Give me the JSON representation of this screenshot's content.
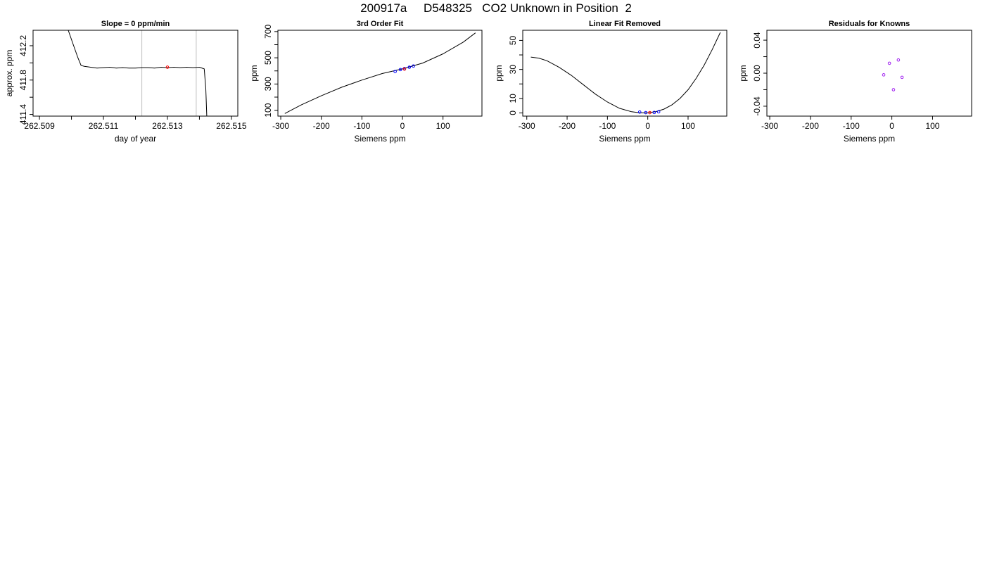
{
  "figure": {
    "title": "200917a     D548325   CO2 Unknown in Position  2"
  },
  "colors": {
    "line": "#000000",
    "vline": "#bebebe",
    "known_point": "#0000ff",
    "unknown_point": "#ff0000",
    "residual_point": "#a020f0"
  },
  "chart_data": [
    {
      "type": "line",
      "title": "Slope =  0  ppm/min",
      "xlabel": "day of year",
      "ylabel": "approx. ppm",
      "xlim": [
        262.5088,
        262.5152
      ],
      "ylim": [
        411.38,
        412.38
      ],
      "xticks": [
        262.509,
        262.51,
        262.511,
        262.512,
        262.513,
        262.514,
        262.515
      ],
      "xtick_labels": [
        "262.509",
        "",
        "262.511",
        "",
        "262.513",
        "",
        "262.515"
      ],
      "yticks": [
        411.4,
        411.6,
        411.8,
        412.0,
        412.2
      ],
      "ytick_labels": [
        "411.4",
        "",
        "411.8",
        "",
        "412.2"
      ],
      "vlines": [
        262.5122,
        262.5139
      ],
      "series": [
        {
          "x": [
            262.5099,
            262.51005,
            262.5102,
            262.5103,
            262.5104,
            262.5106,
            262.5108,
            262.511,
            262.5112,
            262.5114,
            262.5116,
            262.5118,
            262.512,
            262.5122,
            262.5124,
            262.5126,
            262.5128,
            262.513,
            262.5132,
            262.5134,
            262.5136,
            262.5138,
            262.514,
            262.51415,
            262.5142,
            262.51423
          ],
          "y": [
            412.38,
            412.22,
            412.06,
            411.97,
            411.96,
            411.95,
            411.94,
            411.945,
            411.95,
            411.94,
            411.945,
            411.94,
            411.94,
            411.945,
            411.945,
            411.94,
            411.95,
            411.945,
            411.95,
            411.945,
            411.95,
            411.945,
            411.95,
            411.93,
            411.7,
            411.38
          ]
        }
      ],
      "points": [
        {
          "x": 262.513,
          "y": 411.95,
          "kind": "unknown"
        }
      ]
    },
    {
      "type": "line",
      "title": "3rd Order Fit",
      "xlabel": "Siemens ppm",
      "ylabel": "ppm",
      "xlim": [
        -307,
        196
      ],
      "ylim": [
        55,
        710
      ],
      "xticks": [
        -300,
        -200,
        -100,
        0,
        100
      ],
      "xtick_labels": [
        "-300",
        "-200",
        "-100",
        "0",
        "100"
      ],
      "yticks": [
        100,
        200,
        300,
        400,
        500,
        600,
        700
      ],
      "ytick_labels": [
        "100",
        "",
        "300",
        "",
        "500",
        "",
        "700"
      ],
      "series": [
        {
          "x": [
            -290,
            -250,
            -200,
            -150,
            -100,
            -50,
            0,
            50,
            100,
            150,
            180
          ],
          "y": [
            75,
            140,
            210,
            275,
            330,
            380,
            415,
            460,
            530,
            620,
            690
          ]
        }
      ],
      "points": [
        {
          "x": -18,
          "y": 395,
          "kind": "known"
        },
        {
          "x": -5,
          "y": 410,
          "kind": "known"
        },
        {
          "x": 5,
          "y": 418,
          "kind": "known"
        },
        {
          "x": 17,
          "y": 428,
          "kind": "known"
        },
        {
          "x": 27,
          "y": 437,
          "kind": "known"
        },
        {
          "x": 5,
          "y": 414,
          "kind": "unknown"
        }
      ]
    },
    {
      "type": "line",
      "title": "Linear Fit Removed",
      "xlabel": "Siemens ppm",
      "ylabel": "ppm",
      "xlim": [
        -310,
        196
      ],
      "ylim": [
        -2.2,
        57
      ],
      "xticks": [
        -300,
        -200,
        -100,
        0,
        100
      ],
      "xtick_labels": [
        "-300",
        "-200",
        "-100",
        "0",
        "100"
      ],
      "yticks": [
        0,
        10,
        20,
        30,
        40,
        50
      ],
      "ytick_labels": [
        "0",
        "10",
        "",
        "30",
        "",
        "50"
      ],
      "series": [
        {
          "x": [
            -290,
            -270,
            -250,
            -220,
            -190,
            -160,
            -130,
            -100,
            -70,
            -40,
            -20,
            0,
            20,
            40,
            60,
            80,
            100,
            120,
            140,
            160,
            180
          ],
          "y": [
            38.5,
            37.8,
            36.0,
            31.5,
            26.0,
            19.5,
            13.0,
            7.5,
            3.2,
            0.8,
            0.1,
            0.1,
            0.9,
            2.6,
            5.6,
            10.0,
            16.0,
            23.8,
            33.0,
            43.8,
            55.5
          ]
        }
      ],
      "points": [
        {
          "x": -20,
          "y": 0.6,
          "kind": "known"
        },
        {
          "x": -5,
          "y": 0.2,
          "kind": "known"
        },
        {
          "x": 5,
          "y": 0.2,
          "kind": "unknown"
        },
        {
          "x": 16,
          "y": 0.3,
          "kind": "known"
        },
        {
          "x": 27,
          "y": 0.8,
          "kind": "known"
        }
      ]
    },
    {
      "type": "scatter",
      "title": "Residuals for Knowns",
      "xlabel": "Siemens ppm",
      "ylabel": "ppm",
      "xlim": [
        -307,
        196
      ],
      "ylim": [
        -0.052,
        0.052
      ],
      "xticks": [
        -300,
        -200,
        -100,
        0,
        100
      ],
      "xtick_labels": [
        "-300",
        "-200",
        "-100",
        "0",
        "100"
      ],
      "yticks": [
        -0.04,
        -0.02,
        0.0,
        0.02,
        0.04
      ],
      "ytick_labels": [
        "-0.04",
        "",
        "0.00",
        "",
        "0.04"
      ],
      "points": [
        {
          "x": -20,
          "y": -0.002,
          "kind": "residual"
        },
        {
          "x": -6,
          "y": 0.012,
          "kind": "residual"
        },
        {
          "x": 4,
          "y": -0.02,
          "kind": "residual"
        },
        {
          "x": 16,
          "y": 0.016,
          "kind": "residual"
        },
        {
          "x": 25,
          "y": -0.005,
          "kind": "residual"
        }
      ]
    }
  ]
}
